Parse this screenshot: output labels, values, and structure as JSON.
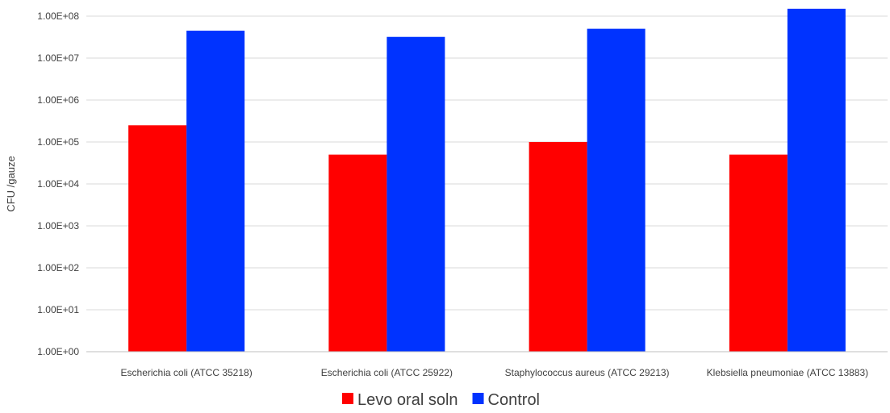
{
  "chart_data": {
    "type": "bar",
    "yscale": "log",
    "ylabel": "CFU /gauze",
    "xlabel": "",
    "ylim": [
      1,
      100000000
    ],
    "ytick_values": [
      1,
      10,
      100,
      1000,
      10000,
      100000,
      1000000,
      10000000,
      100000000
    ],
    "ytick_labels": [
      "1.00E+00",
      "1.00E+01",
      "1.00E+02",
      "1.00E+03",
      "1.00E+04",
      "1.00E+05",
      "1.00E+06",
      "1.00E+07",
      "1.00E+08"
    ],
    "categories": [
      "Escherichia coli (ATCC 35218)",
      "Escherichia coli (ATCC 25922)",
      "Staphylococcus aureus (ATCC 29213)",
      "Klebsiella pneumoniae (ATCC 13883)"
    ],
    "series": [
      {
        "name": "Levo oral soln",
        "color": "#ff0000",
        "values": [
          250000,
          50000,
          100000,
          50000
        ]
      },
      {
        "name": "Control",
        "color": "#0033ff",
        "values": [
          45000000,
          32000000,
          50000000,
          150000000
        ]
      }
    ],
    "grid": true,
    "legend": "bottom-center"
  }
}
